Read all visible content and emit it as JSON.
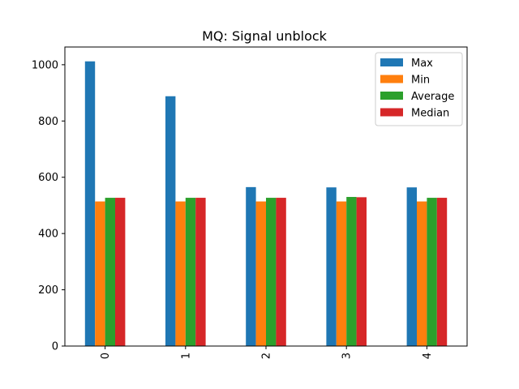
{
  "chart_data": {
    "type": "bar",
    "title": "MQ: Signal unblock",
    "xlabel": "",
    "ylabel": "",
    "categories": [
      "0",
      "1",
      "2",
      "3",
      "4"
    ],
    "ylim": [
      0,
      1063
    ],
    "yticks": [
      0,
      200,
      400,
      600,
      800,
      1000
    ],
    "x_tick_rotation": 90,
    "legend_position": "top-right",
    "grid": false,
    "series": [
      {
        "name": "Max",
        "color": "#1f77b4",
        "values": [
          1012,
          888,
          565,
          564,
          564
        ]
      },
      {
        "name": "Min",
        "color": "#ff7f0e",
        "values": [
          514,
          514,
          514,
          514,
          514
        ]
      },
      {
        "name": "Average",
        "color": "#2ca02c",
        "values": [
          527,
          527,
          527,
          530,
          527
        ]
      },
      {
        "name": "Median",
        "color": "#d62728",
        "values": [
          527,
          527,
          527,
          529,
          527
        ]
      }
    ]
  }
}
